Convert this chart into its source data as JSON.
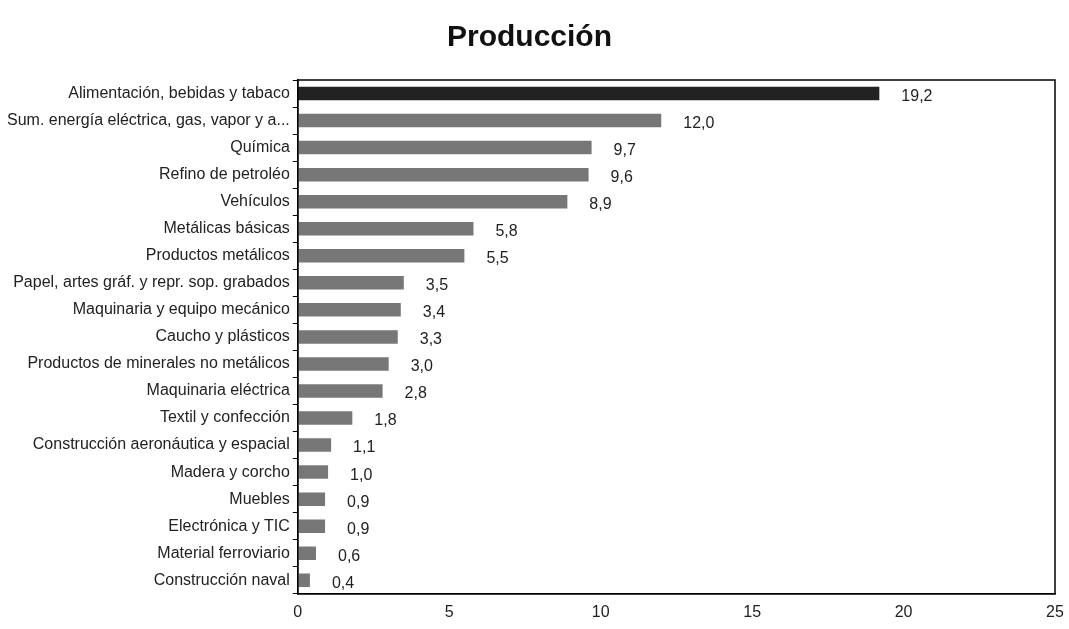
{
  "chart_data": {
    "type": "bar",
    "orientation": "horizontal",
    "title": "Producción",
    "categories": [
      "Alimentación, bebidas y tabaco",
      "Sum. energía eléctrica, gas, vapor y a...",
      "Química",
      "Refino de petroléo",
      "Vehículos",
      "Metálicas básicas",
      "Productos metálicos",
      "Papel, artes gráf. y repr. sop. grabados",
      "Maquinaria y equipo mecánico",
      "Caucho y plásticos",
      "Productos de minerales no metálicos",
      "Maquinaria eléctrica",
      "Textil y confección",
      "Construcción aeronáutica y espacial",
      "Madera y corcho",
      "Muebles",
      "Electrónica y TIC",
      "Material ferroviario",
      "Construcción naval"
    ],
    "values": [
      19.2,
      12.0,
      9.7,
      9.6,
      8.9,
      5.8,
      5.5,
      3.5,
      3.4,
      3.3,
      3.0,
      2.8,
      1.8,
      1.1,
      1.0,
      0.9,
      0.9,
      0.6,
      0.4
    ],
    "value_labels": [
      "19,2",
      "12,0",
      "9,7",
      "9,6",
      "8,9",
      "5,8",
      "5,5",
      "3,5",
      "3,4",
      "3,3",
      "3,0",
      "2,8",
      "1,8",
      "1,1",
      "1,0",
      "0,9",
      "0,9",
      "0,6",
      "0,4"
    ],
    "colors": [
      "#222222",
      "#777777",
      "#777777",
      "#777777",
      "#777777",
      "#777777",
      "#777777",
      "#777777",
      "#777777",
      "#777777",
      "#777777",
      "#777777",
      "#777777",
      "#777777",
      "#777777",
      "#777777",
      "#777777",
      "#777777",
      "#777777"
    ],
    "xlim": [
      0,
      25
    ],
    "xticks": [
      0,
      5,
      10,
      15,
      20,
      25
    ],
    "grid": false,
    "legend": false
  }
}
